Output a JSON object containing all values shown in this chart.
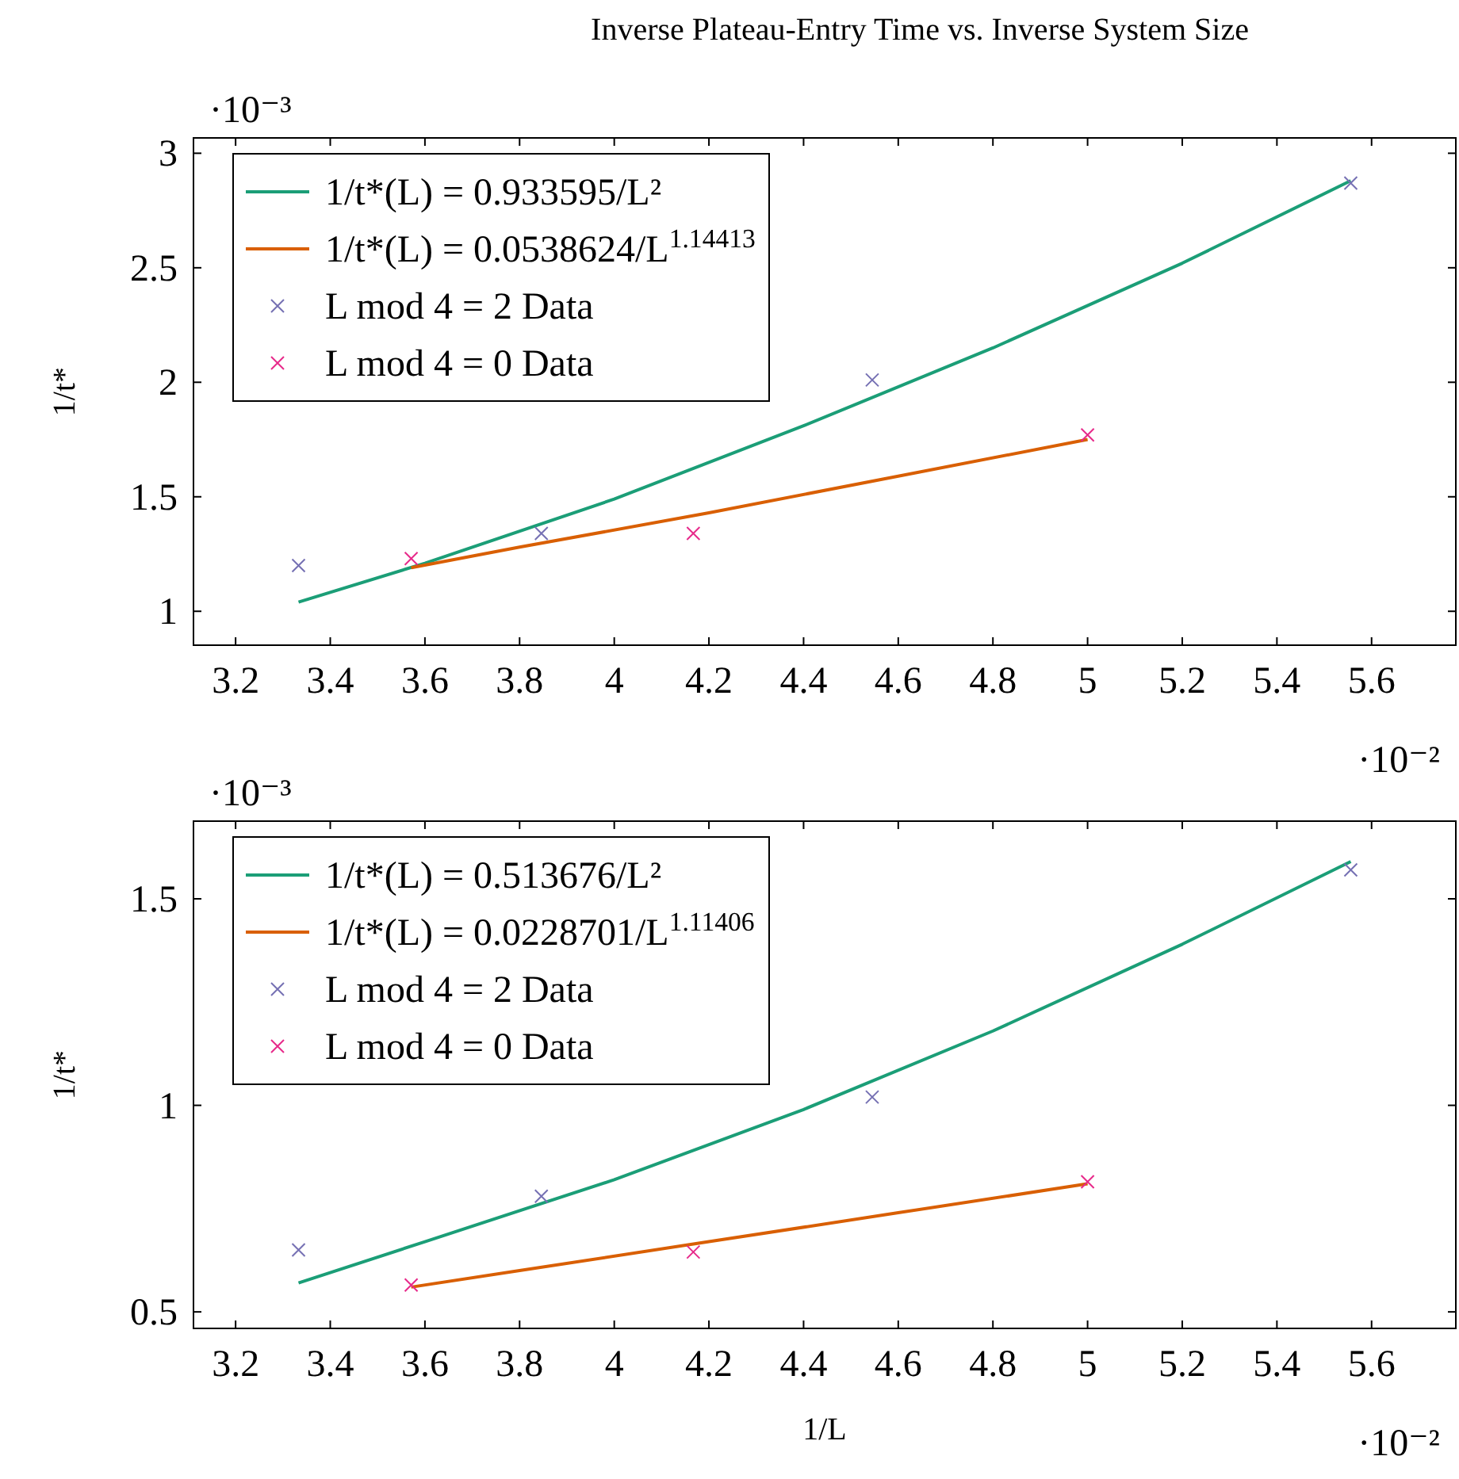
{
  "chart_data": [
    {
      "type": "line",
      "title": "Inverse Plateau-Entry Time vs. Inverse System Size",
      "ylabel": "1/t*",
      "annotations": [
        "·10⁻³",
        "·10⁻²"
      ],
      "xlim": [
        3.111,
        5.778
      ],
      "ylim": [
        0.852,
        3.067
      ],
      "xticks": [
        3.2,
        3.4,
        3.6,
        3.8,
        4,
        4.2,
        4.4,
        4.6,
        4.8,
        5,
        5.2,
        5.4,
        5.6
      ],
      "yticks": [
        1,
        1.5,
        2,
        2.5,
        3
      ],
      "grid": false,
      "legend": "top left",
      "series": [
        {
          "name": "1/t*(L) = 0.933595/L²",
          "color": "#1b9e77",
          "marker": "none",
          "x": [
            3.333,
            3.6,
            4.0,
            4.4,
            4.8,
            5.2,
            5.556
          ],
          "values": [
            1.04,
            1.21,
            1.49,
            1.81,
            2.15,
            2.52,
            2.88
          ]
        },
        {
          "name": "1/t*(L) = 0.0538624/L$^{1.14413}$",
          "color": "#d95f02",
          "marker": "none",
          "x": [
            3.571,
            3.8,
            4.2,
            4.6,
            5.0
          ],
          "values": [
            1.19,
            1.28,
            1.43,
            1.59,
            1.75
          ]
        },
        {
          "name": "L  mod 4 = 2 Data",
          "type": "scatter",
          "color": "#7570b3",
          "marker": "cross",
          "x": [
            3.333,
            3.846,
            4.545,
            5.556
          ],
          "values": [
            1.2,
            1.34,
            2.01,
            2.87
          ]
        },
        {
          "name": "L  mod 4 = 0 Data",
          "type": "scatter",
          "color": "#e7298a",
          "marker": "cross",
          "x": [
            3.571,
            4.167,
            5.0
          ],
          "values": [
            1.23,
            1.34,
            1.77
          ]
        }
      ]
    },
    {
      "type": "line",
      "xlabel": "1/L",
      "ylabel": "1/t*",
      "annotations": [
        "·10⁻³",
        "·10⁻²"
      ],
      "xlim": [
        3.111,
        5.778
      ],
      "ylim": [
        0.46,
        1.688
      ],
      "xticks": [
        3.2,
        3.4,
        3.6,
        3.8,
        4,
        4.2,
        4.4,
        4.6,
        4.8,
        5,
        5.2,
        5.4,
        5.6
      ],
      "yticks": [
        0.5,
        1,
        1.5
      ],
      "grid": false,
      "legend": "top left",
      "series": [
        {
          "name": "1/t*(L) = 0.513676/L²",
          "color": "#1b9e77",
          "marker": "none",
          "x": [
            3.333,
            3.6,
            4.0,
            4.4,
            4.8,
            5.2,
            5.556
          ],
          "values": [
            0.57,
            0.67,
            0.82,
            0.99,
            1.18,
            1.39,
            1.59
          ]
        },
        {
          "name": "1/t*(L) = 0.0228701/L$^{1.11406}$",
          "color": "#d95f02",
          "marker": "none",
          "x": [
            3.571,
            3.8,
            4.2,
            4.6,
            5.0
          ],
          "values": [
            0.56,
            0.6,
            0.67,
            0.74,
            0.81
          ]
        },
        {
          "name": "L  mod 4 = 2 Data",
          "type": "scatter",
          "color": "#7570b3",
          "marker": "cross",
          "x": [
            3.333,
            3.846,
            4.545,
            5.556
          ],
          "values": [
            0.65,
            0.78,
            1.02,
            1.57
          ]
        },
        {
          "name": "L  mod 4 = 0 Data",
          "type": "scatter",
          "color": "#e7298a",
          "marker": "cross",
          "x": [
            3.571,
            4.167,
            5.0
          ],
          "values": [
            0.565,
            0.645,
            0.815
          ]
        }
      ]
    }
  ]
}
